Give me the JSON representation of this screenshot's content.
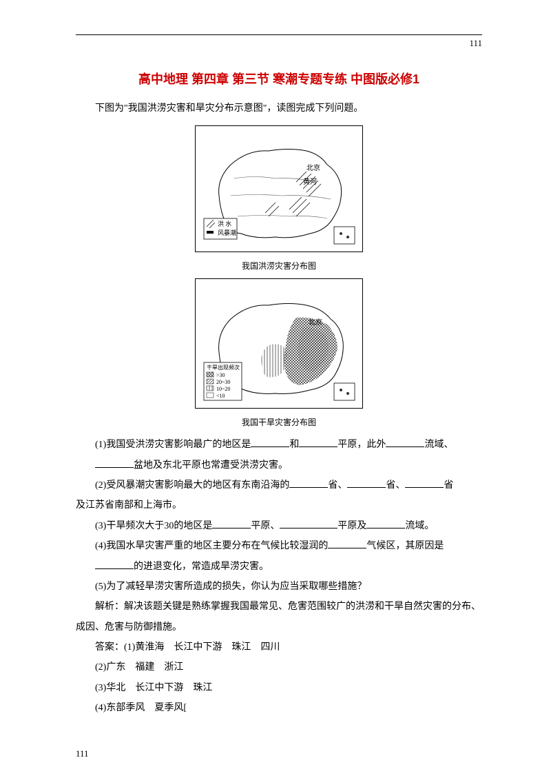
{
  "pageNumberTop": "111",
  "pageNumberBottom": "111",
  "title": "高中地理 第四章 第三节 寒潮专题专练 中图版必修1",
  "titleColor": "#cc0000",
  "intro": "下图为\"我国洪涝灾害和旱灾分布示意图\"，读图完成下列问题。",
  "maps": [
    {
      "caption": "我国洪涝灾害分布图",
      "labels": [
        "北京",
        "黄河"
      ],
      "legend": [
        "洪 水",
        "风暴潮"
      ],
      "legend_symbols": [
        "▨",
        "▬"
      ]
    },
    {
      "caption": "我国干旱灾害分布图",
      "labels": [
        "北京"
      ],
      "legendTitle": "干旱出现频次",
      "legend": [
        ">30",
        "20~30",
        "10~20",
        "<10"
      ]
    }
  ],
  "questions": [
    {
      "pre": "(1)我国受洪涝灾害影响最广的地区是",
      "b1": 56,
      "mid1": "和",
      "b2": 56,
      "mid2": "平原，此外",
      "b3": 56,
      "mid3": "流域、",
      "cont": true
    },
    {
      "pre": "",
      "b1": 56,
      "mid1": "盆地及东北平原也常遭受洪涝灾害。"
    },
    {
      "pre": "(2)受风暴潮灾害影响最大的地区有东南沿海的",
      "b1": 56,
      "mid1": "省、",
      "b2": 56,
      "mid2": "省、",
      "b3": 56,
      "mid3": "省",
      "cont": true
    },
    {
      "pre": "及江苏省南部和上海市。",
      "noindent": true
    },
    {
      "pre": "(3)干旱频次大于30的地区是",
      "b1": 56,
      "mid1": "平原、",
      "b2": 84,
      "mid2": "平原及",
      "b3": 56,
      "mid3": "流域。"
    },
    {
      "pre": "(4)我国水旱灾害严重的地区主要分布在气候比较湿润的",
      "b1": 56,
      "mid1": "气候区，其原因是",
      "cont": true
    },
    {
      "pre": "",
      "b1": 56,
      "mid1": "的进退变化，常造成旱涝灾害。"
    },
    {
      "pre": "(5)为了减轻旱涝灾害所造成的损失，你认为应当采取哪些措施？"
    }
  ],
  "analysis": "解析：解决该题关键是熟练掌握我国最常见、危害范围较广的洪涝和干旱自然灾害的分布、成因、危害与防御措施。",
  "answers": [
    "答案：(1)黄淮海　长江中下游　珠江　四川",
    "(2)广东　福建　浙江",
    "(3)华北　长江中下游　珠江",
    "(4)东部季风　夏季风["
  ],
  "blankWidths": {
    "small": 56,
    "med": 84
  }
}
